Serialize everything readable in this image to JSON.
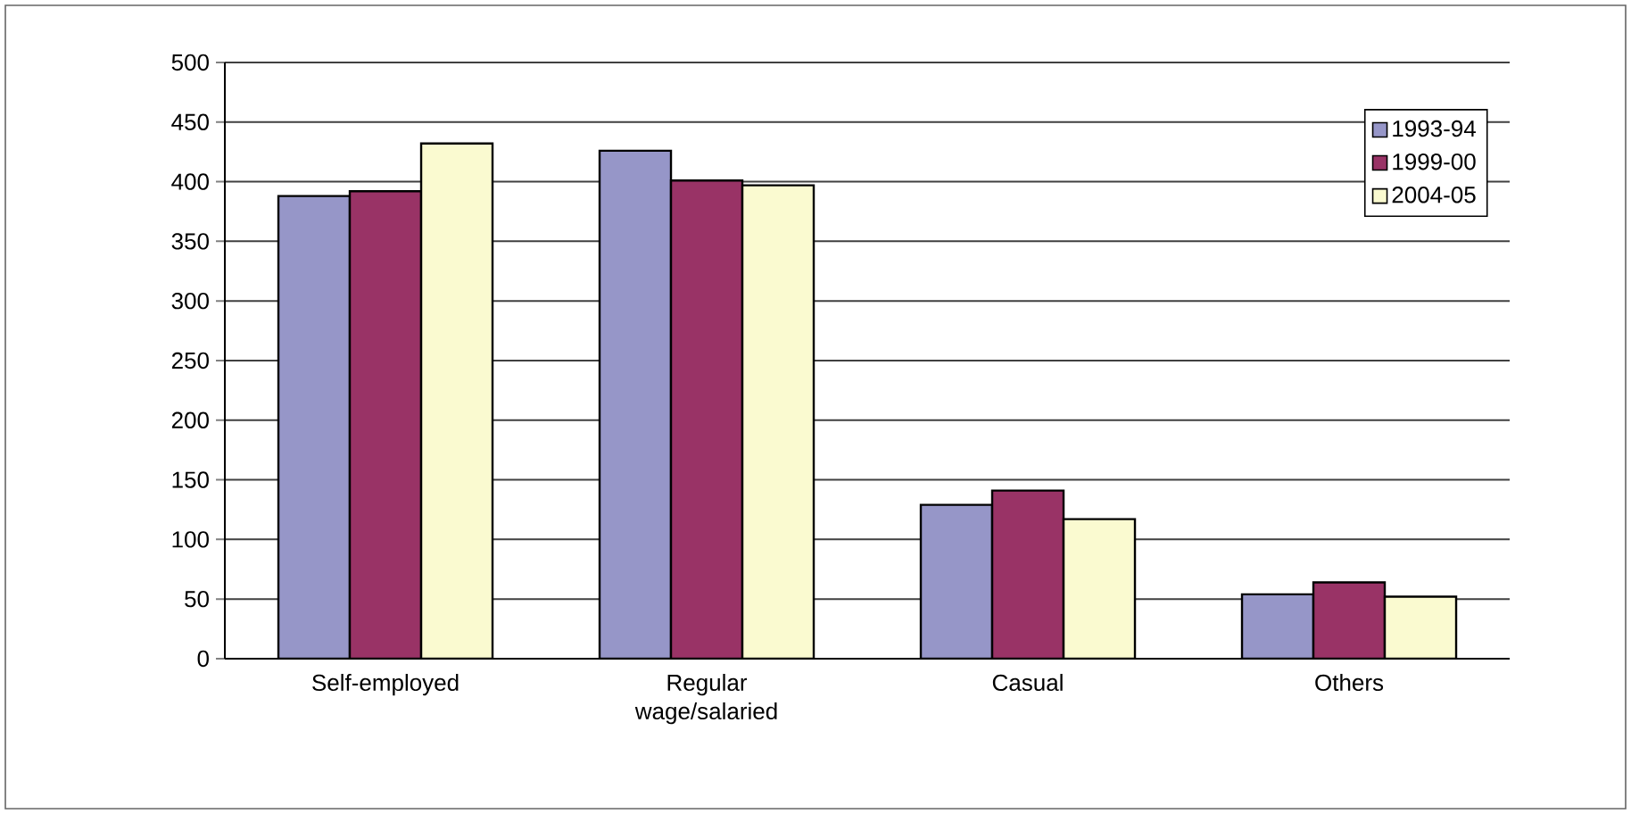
{
  "chart_data": {
    "type": "bar",
    "categories": [
      "Self-employed",
      "Regular wage/salaried",
      "Casual",
      "Others"
    ],
    "series": [
      {
        "name": "1993-94",
        "color": "#9696c8",
        "values": [
          388,
          426,
          129,
          54
        ]
      },
      {
        "name": "1999-00",
        "color": "#993366",
        "values": [
          392,
          401,
          141,
          64
        ]
      },
      {
        "name": "2004-05",
        "color": "#fafad0",
        "values": [
          432,
          397,
          117,
          52
        ]
      }
    ],
    "ylim": [
      0,
      500
    ],
    "yticks": [
      0,
      50,
      100,
      150,
      200,
      250,
      300,
      350,
      400,
      450,
      500
    ],
    "grid": "y",
    "legend": "top right"
  }
}
